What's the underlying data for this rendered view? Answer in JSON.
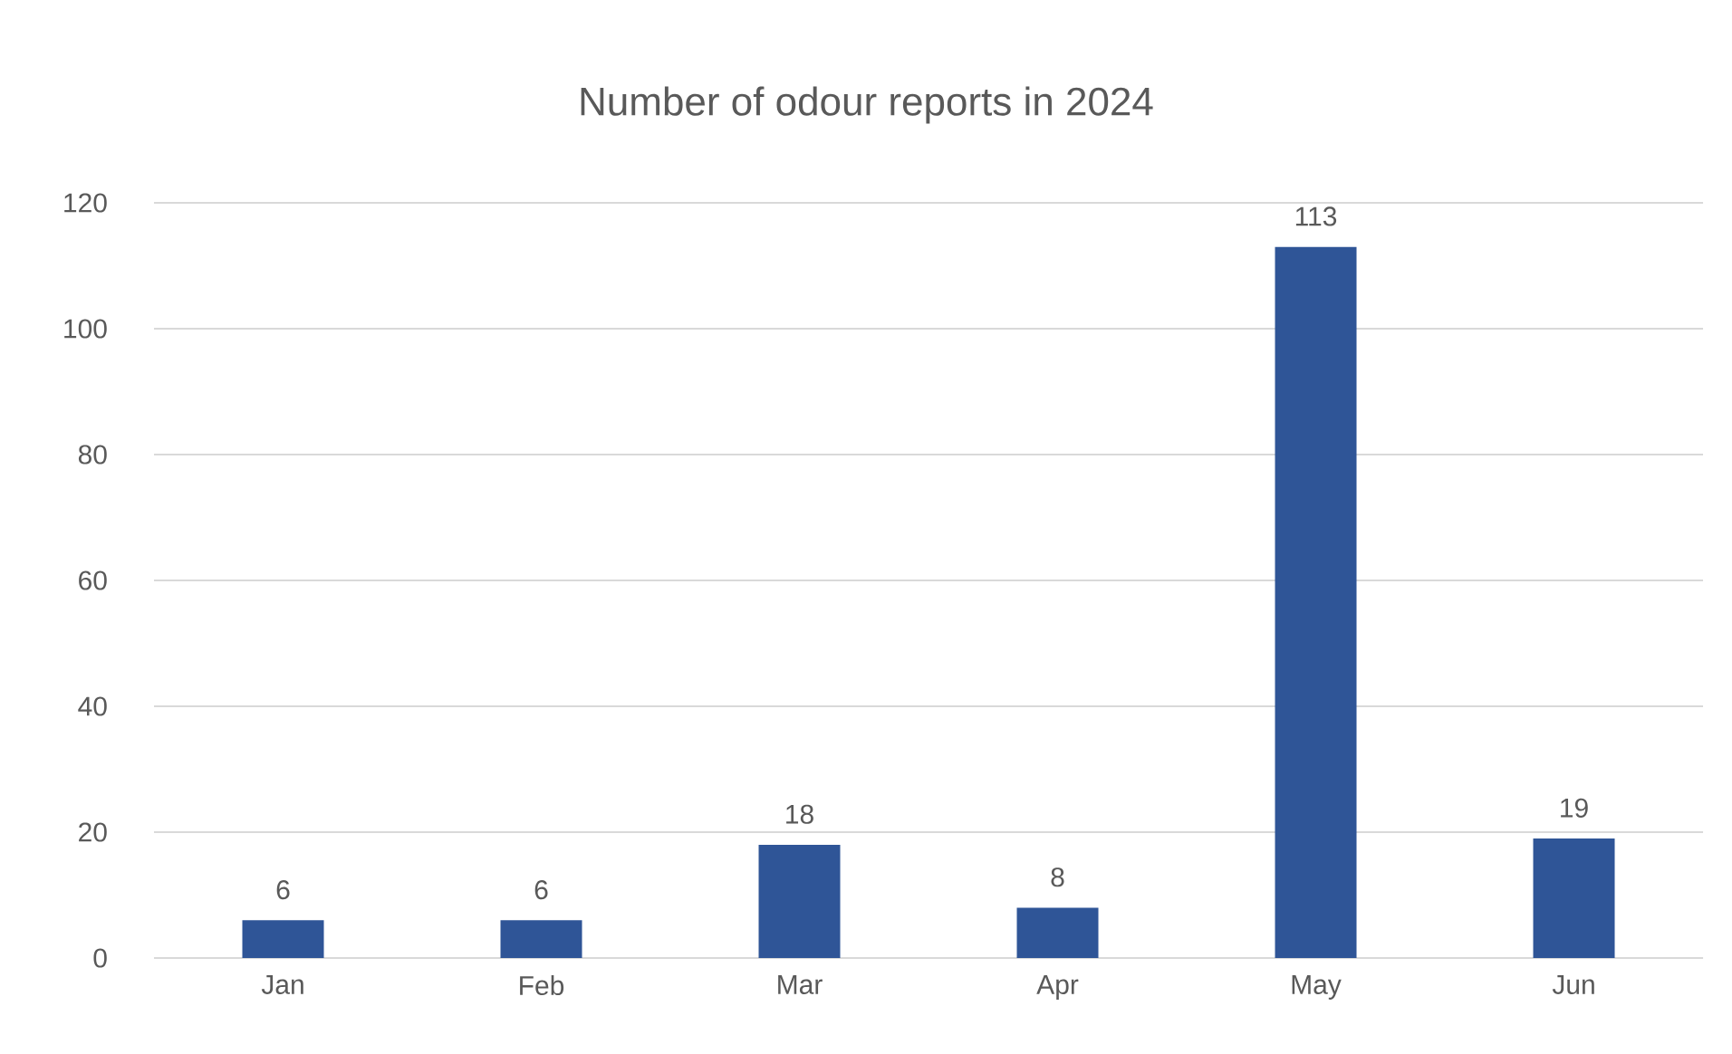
{
  "chart_data": {
    "type": "bar",
    "title": "Number of odour reports in 2024",
    "categories": [
      "Jan",
      "Feb",
      "Mar",
      "Apr",
      "May",
      "Jun"
    ],
    "values": [
      6,
      6,
      18,
      8,
      113,
      19
    ],
    "color": "#2f5597",
    "ylim": [
      0,
      120
    ],
    "yticks": [
      0,
      20,
      40,
      60,
      80,
      100,
      120
    ],
    "grid": "y",
    "data_labels": true
  }
}
